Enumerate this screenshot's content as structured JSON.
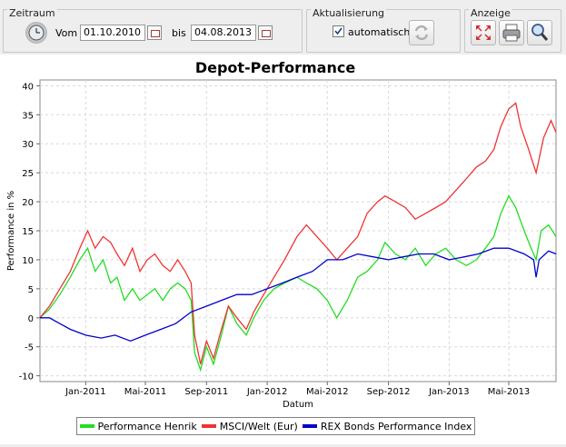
{
  "toolbar": {
    "zeitraum": {
      "title": "Zeitraum",
      "vom_label": "Vom",
      "vom_value": "01.10.2010",
      "bis_label": "bis",
      "bis_value": "04.08.2013"
    },
    "aktualisierung": {
      "title": "Aktualisierung",
      "auto_label": "automatisch",
      "auto_checked": true
    },
    "anzeige": {
      "title": "Anzeige"
    }
  },
  "icons": {
    "clock": "clock-icon",
    "calendar": "calendar-icon",
    "refresh": "refresh-icon",
    "fullscreen": "fullscreen-icon",
    "print": "printer-icon",
    "zoom": "magnifier-icon"
  },
  "chart_data": {
    "type": "line",
    "title": "Depot-Performance",
    "xlabel": "Datum",
    "ylabel": "Performance in %",
    "ylim": [
      -11,
      41
    ],
    "yticks": [
      -10,
      -5,
      0,
      5,
      10,
      15,
      20,
      25,
      30,
      35,
      40
    ],
    "xlim": [
      "2010-10-01",
      "2013-08-04"
    ],
    "xticks": [
      {
        "date": "2011-01-01",
        "label": "Jan-2011"
      },
      {
        "date": "2011-05-01",
        "label": "Mai-2011"
      },
      {
        "date": "2011-09-01",
        "label": "Sep-2011"
      },
      {
        "date": "2012-01-01",
        "label": "Jan-2012"
      },
      {
        "date": "2012-05-01",
        "label": "Mai-2012"
      },
      {
        "date": "2012-09-01",
        "label": "Sep-2012"
      },
      {
        "date": "2013-01-01",
        "label": "Jan-2013"
      },
      {
        "date": "2013-05-01",
        "label": "Mai-2013"
      }
    ],
    "grid": true,
    "legend_position": "bottom",
    "series": [
      {
        "name": "Performance Henrik",
        "color": "#22dd22",
        "points": [
          [
            "2010-10-01",
            0
          ],
          [
            "2010-10-20",
            1.5
          ],
          [
            "2010-11-10",
            4
          ],
          [
            "2010-12-01",
            7
          ],
          [
            "2010-12-20",
            10
          ],
          [
            "2011-01-05",
            12
          ],
          [
            "2011-01-20",
            8
          ],
          [
            "2011-02-05",
            10
          ],
          [
            "2011-02-20",
            6
          ],
          [
            "2011-03-05",
            7
          ],
          [
            "2011-03-20",
            3
          ],
          [
            "2011-04-05",
            5
          ],
          [
            "2011-04-20",
            3
          ],
          [
            "2011-05-05",
            4
          ],
          [
            "2011-05-20",
            5
          ],
          [
            "2011-06-05",
            3
          ],
          [
            "2011-06-20",
            5
          ],
          [
            "2011-07-05",
            6
          ],
          [
            "2011-07-20",
            5
          ],
          [
            "2011-08-01",
            3
          ],
          [
            "2011-08-08",
            -6
          ],
          [
            "2011-08-20",
            -9
          ],
          [
            "2011-09-01",
            -5
          ],
          [
            "2011-09-15",
            -8
          ],
          [
            "2011-10-01",
            -3
          ],
          [
            "2011-10-15",
            2
          ],
          [
            "2011-11-01",
            -1
          ],
          [
            "2011-11-20",
            -3
          ],
          [
            "2011-12-05",
            0
          ],
          [
            "2011-12-25",
            3
          ],
          [
            "2012-01-15",
            5
          ],
          [
            "2012-02-05",
            6
          ],
          [
            "2012-03-01",
            7
          ],
          [
            "2012-03-20",
            6
          ],
          [
            "2012-04-10",
            5
          ],
          [
            "2012-05-01",
            3
          ],
          [
            "2012-05-20",
            0
          ],
          [
            "2012-06-10",
            3
          ],
          [
            "2012-07-01",
            7
          ],
          [
            "2012-07-20",
            8
          ],
          [
            "2012-08-10",
            10
          ],
          [
            "2012-08-25",
            13
          ],
          [
            "2012-09-15",
            11
          ],
          [
            "2012-10-05",
            10
          ],
          [
            "2012-10-25",
            12
          ],
          [
            "2012-11-15",
            9
          ],
          [
            "2012-12-05",
            11
          ],
          [
            "2012-12-25",
            12
          ],
          [
            "2013-01-15",
            10
          ],
          [
            "2013-02-05",
            9
          ],
          [
            "2013-02-25",
            10
          ],
          [
            "2013-03-15",
            12
          ],
          [
            "2013-04-01",
            14
          ],
          [
            "2013-04-15",
            18
          ],
          [
            "2013-05-01",
            21
          ],
          [
            "2013-05-15",
            19
          ],
          [
            "2013-06-01",
            15
          ],
          [
            "2013-06-15",
            12
          ],
          [
            "2013-06-25",
            10
          ],
          [
            "2013-07-05",
            15
          ],
          [
            "2013-07-20",
            16
          ],
          [
            "2013-08-04",
            14
          ]
        ]
      },
      {
        "name": "MSCI/Welt (Eur)",
        "color": "#ee3333",
        "points": [
          [
            "2010-10-01",
            0
          ],
          [
            "2010-10-20",
            2
          ],
          [
            "2010-11-10",
            5
          ],
          [
            "2010-12-01",
            8
          ],
          [
            "2010-12-20",
            12
          ],
          [
            "2011-01-05",
            15
          ],
          [
            "2011-01-20",
            12
          ],
          [
            "2011-02-05",
            14
          ],
          [
            "2011-02-20",
            13
          ],
          [
            "2011-03-05",
            11
          ],
          [
            "2011-03-20",
            9
          ],
          [
            "2011-04-05",
            12
          ],
          [
            "2011-04-20",
            8
          ],
          [
            "2011-05-05",
            10
          ],
          [
            "2011-05-20",
            11
          ],
          [
            "2011-06-05",
            9
          ],
          [
            "2011-06-20",
            8
          ],
          [
            "2011-07-05",
            10
          ],
          [
            "2011-07-20",
            8
          ],
          [
            "2011-08-01",
            6
          ],
          [
            "2011-08-08",
            -3
          ],
          [
            "2011-08-20",
            -8
          ],
          [
            "2011-09-01",
            -4
          ],
          [
            "2011-09-15",
            -7
          ],
          [
            "2011-10-01",
            -2
          ],
          [
            "2011-10-15",
            2
          ],
          [
            "2011-11-01",
            0
          ],
          [
            "2011-11-20",
            -2
          ],
          [
            "2011-12-05",
            1
          ],
          [
            "2011-12-25",
            4
          ],
          [
            "2012-01-15",
            7
          ],
          [
            "2012-02-05",
            10
          ],
          [
            "2012-03-01",
            14
          ],
          [
            "2012-03-20",
            16
          ],
          [
            "2012-04-10",
            14
          ],
          [
            "2012-05-01",
            12
          ],
          [
            "2012-05-20",
            10
          ],
          [
            "2012-06-10",
            12
          ],
          [
            "2012-07-01",
            14
          ],
          [
            "2012-07-20",
            18
          ],
          [
            "2012-08-10",
            20
          ],
          [
            "2012-08-25",
            21
          ],
          [
            "2012-09-15",
            20
          ],
          [
            "2012-10-05",
            19
          ],
          [
            "2012-10-25",
            17
          ],
          [
            "2012-11-15",
            18
          ],
          [
            "2012-12-05",
            19
          ],
          [
            "2012-12-25",
            20
          ],
          [
            "2013-01-15",
            22
          ],
          [
            "2013-02-05",
            24
          ],
          [
            "2013-02-25",
            26
          ],
          [
            "2013-03-15",
            27
          ],
          [
            "2013-04-01",
            29
          ],
          [
            "2013-04-15",
            33
          ],
          [
            "2013-05-01",
            36
          ],
          [
            "2013-05-15",
            37
          ],
          [
            "2013-05-25",
            33
          ],
          [
            "2013-06-10",
            29
          ],
          [
            "2013-06-25",
            25
          ],
          [
            "2013-07-10",
            31
          ],
          [
            "2013-07-25",
            34
          ],
          [
            "2013-08-04",
            32
          ]
        ]
      },
      {
        "name": "REX Bonds Performance Index",
        "color": "#0000cc",
        "points": [
          [
            "2010-10-01",
            0
          ],
          [
            "2010-10-20",
            0
          ],
          [
            "2010-11-10",
            -1
          ],
          [
            "2010-12-01",
            -2
          ],
          [
            "2011-01-01",
            -3
          ],
          [
            "2011-02-01",
            -3.5
          ],
          [
            "2011-03-01",
            -3
          ],
          [
            "2011-04-01",
            -4
          ],
          [
            "2011-05-01",
            -3
          ],
          [
            "2011-06-01",
            -2
          ],
          [
            "2011-07-01",
            -1
          ],
          [
            "2011-08-01",
            1
          ],
          [
            "2011-09-01",
            2
          ],
          [
            "2011-10-01",
            3
          ],
          [
            "2011-11-01",
            4
          ],
          [
            "2011-12-01",
            4
          ],
          [
            "2012-01-01",
            5
          ],
          [
            "2012-02-01",
            6
          ],
          [
            "2012-03-01",
            7
          ],
          [
            "2012-04-01",
            8
          ],
          [
            "2012-05-01",
            10
          ],
          [
            "2012-06-01",
            10
          ],
          [
            "2012-07-01",
            11
          ],
          [
            "2012-08-01",
            10.5
          ],
          [
            "2012-09-01",
            10
          ],
          [
            "2012-10-01",
            10.5
          ],
          [
            "2012-11-01",
            11
          ],
          [
            "2012-12-01",
            11
          ],
          [
            "2013-01-01",
            10
          ],
          [
            "2013-02-01",
            10.5
          ],
          [
            "2013-03-01",
            11
          ],
          [
            "2013-04-01",
            12
          ],
          [
            "2013-05-01",
            12
          ],
          [
            "2013-06-01",
            11
          ],
          [
            "2013-06-20",
            10
          ],
          [
            "2013-06-25",
            7
          ],
          [
            "2013-07-01",
            10
          ],
          [
            "2013-07-20",
            11.5
          ],
          [
            "2013-08-04",
            11
          ]
        ]
      }
    ]
  }
}
